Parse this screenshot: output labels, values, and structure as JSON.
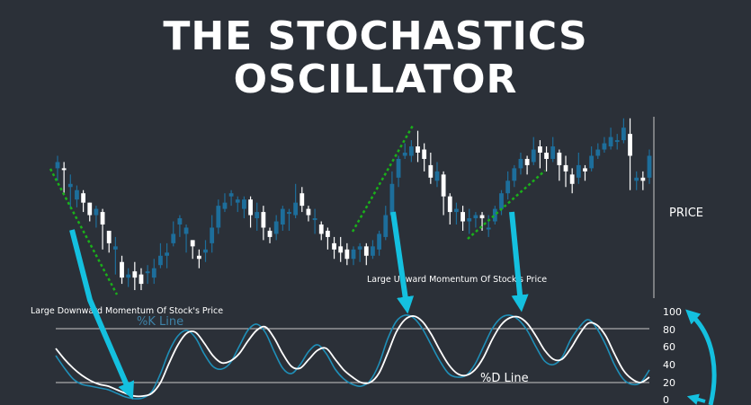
{
  "title_lines": [
    "THE STOCHASTICS",
    "OSCILLATOR"
  ],
  "colors": {
    "background": "#2b3038",
    "candle_white": "#ffffff",
    "candle_blue": "#1d6e9b",
    "k_line": "#1f8fb8",
    "d_line": "#ffffff",
    "arrow": "#14c0df",
    "trend": "#1ab01a",
    "k_label": "#3f83a8",
    "guide": "#c8c8c8"
  },
  "chart_data": [
    {
      "type": "candlestick",
      "ylabel": "PRICE",
      "ylim": [
        0,
        100
      ],
      "candles": [
        [
          82,
          86,
          80,
          90,
          74
        ],
        [
          82,
          81,
          70,
          86,
          66
        ],
        [
          70,
          72,
          60,
          78,
          56
        ],
        [
          62,
          68,
          60,
          71,
          57
        ],
        [
          66,
          60,
          57,
          68,
          54
        ],
        [
          60,
          52,
          52,
          60,
          48
        ],
        [
          52,
          56,
          46,
          58,
          44
        ],
        [
          54,
          46,
          38,
          56,
          30
        ],
        [
          42,
          34,
          30,
          42,
          28
        ],
        [
          30,
          32,
          20,
          38,
          14
        ],
        [
          22,
          12,
          10,
          26,
          8
        ],
        [
          12,
          14,
          8,
          18,
          6
        ],
        [
          16,
          12,
          8,
          22,
          4
        ],
        [
          14,
          8,
          6,
          18,
          4
        ],
        [
          16,
          16,
          8,
          20,
          10
        ],
        [
          12,
          18,
          12,
          24,
          8
        ],
        [
          20,
          26,
          20,
          34,
          18
        ],
        [
          26,
          28,
          22,
          34,
          18
        ],
        [
          34,
          40,
          32,
          48,
          32
        ],
        [
          46,
          50,
          42,
          52,
          38
        ],
        [
          40,
          44,
          36,
          46,
          28
        ],
        [
          36,
          32,
          26,
          36,
          24
        ],
        [
          26,
          24,
          20,
          30,
          18
        ],
        [
          28,
          30,
          24,
          36,
          22
        ],
        [
          34,
          44,
          32,
          52,
          28
        ],
        [
          44,
          58,
          44,
          62,
          40
        ],
        [
          56,
          60,
          56,
          66,
          54
        ],
        [
          64,
          66,
          60,
          68,
          58
        ],
        [
          60,
          62,
          58,
          64,
          54
        ],
        [
          56,
          62,
          54,
          64,
          50
        ],
        [
          62,
          52,
          50,
          64,
          44
        ],
        [
          50,
          54,
          48,
          60,
          42
        ],
        [
          54,
          44,
          40,
          58,
          36
        ],
        [
          42,
          38,
          36,
          44,
          34
        ],
        [
          40,
          48,
          38,
          52,
          36
        ],
        [
          46,
          56,
          46,
          58,
          42
        ],
        [
          54,
          54,
          44,
          56,
          42
        ],
        [
          52,
          60,
          50,
          72,
          50
        ],
        [
          66,
          58,
          56,
          70,
          54
        ],
        [
          56,
          52,
          50,
          58,
          48
        ],
        [
          50,
          50,
          42,
          56,
          40
        ],
        [
          46,
          40,
          38,
          48,
          36
        ],
        [
          42,
          38,
          32,
          44,
          30
        ],
        [
          34,
          30,
          28,
          38,
          24
        ],
        [
          32,
          28,
          26,
          38,
          22
        ],
        [
          30,
          24,
          22,
          34,
          20
        ],
        [
          24,
          30,
          24,
          32,
          20
        ],
        [
          30,
          32,
          28,
          34,
          22
        ],
        [
          32,
          26,
          26,
          34,
          20
        ],
        [
          26,
          32,
          26,
          36,
          24
        ],
        [
          30,
          40,
          30,
          42,
          26
        ],
        [
          38,
          52,
          38,
          58,
          36
        ],
        [
          52,
          72,
          52,
          80,
          48
        ],
        [
          76,
          88,
          76,
          90,
          70
        ],
        [
          90,
          92,
          90,
          98,
          88
        ],
        [
          90,
          96,
          88,
          100,
          86
        ],
        [
          96,
          92,
          92,
          106,
          86
        ],
        [
          94,
          88,
          84,
          98,
          80
        ],
        [
          84,
          76,
          74,
          92,
          72
        ],
        [
          74,
          80,
          74,
          86,
          70
        ],
        [
          78,
          64,
          62,
          80,
          52
        ],
        [
          64,
          54,
          50,
          66,
          46
        ],
        [
          54,
          56,
          50,
          60,
          46
        ],
        [
          54,
          48,
          44,
          58,
          42
        ],
        [
          48,
          50,
          44,
          56,
          40
        ],
        [
          50,
          52,
          46,
          54,
          44
        ],
        [
          52,
          50,
          44,
          54,
          42
        ],
        [
          44,
          44,
          40,
          52,
          38
        ],
        [
          48,
          56,
          48,
          58,
          46
        ],
        [
          56,
          66,
          56,
          68,
          52
        ],
        [
          66,
          74,
          66,
          80,
          62
        ],
        [
          74,
          82,
          74,
          84,
          70
        ],
        [
          82,
          88,
          82,
          92,
          78
        ],
        [
          88,
          84,
          80,
          90,
          78
        ],
        [
          86,
          94,
          86,
          102,
          84
        ],
        [
          96,
          92,
          88,
          100,
          82
        ],
        [
          92,
          88,
          84,
          96,
          80
        ],
        [
          88,
          96,
          88,
          102,
          86
        ],
        [
          92,
          84,
          82,
          94,
          74
        ],
        [
          84,
          80,
          76,
          90,
          70
        ],
        [
          78,
          72,
          68,
          82,
          66
        ],
        [
          76,
          84,
          76,
          92,
          72
        ],
        [
          82,
          80,
          76,
          84,
          74
        ],
        [
          82,
          90,
          82,
          96,
          80
        ],
        [
          90,
          94,
          90,
          98,
          88
        ],
        [
          94,
          98,
          94,
          102,
          92
        ],
        [
          96,
          102,
          96,
          108,
          94
        ],
        [
          100,
          100,
          96,
          104,
          94
        ],
        [
          100,
          108,
          100,
          114,
          98
        ],
        [
          104,
          90,
          70,
          114,
          68
        ],
        [
          74,
          76,
          70,
          80,
          68
        ],
        [
          76,
          74,
          72,
          80,
          68
        ],
        [
          76,
          90,
          76,
          94,
          72
        ]
      ],
      "trend_lines": [
        "down-left",
        "up-middle",
        "up-right"
      ]
    },
    {
      "type": "line",
      "ylim": [
        0,
        100
      ],
      "y_ticks": [
        0,
        20,
        40,
        60,
        80,
        100
      ],
      "guides": [
        20,
        80
      ],
      "series": [
        {
          "name": "%K Line",
          "values": [
            50,
            36,
            24,
            18,
            16,
            14,
            12,
            8,
            4,
            2,
            3,
            10,
            30,
            55,
            72,
            78,
            70,
            52,
            38,
            35,
            42,
            60,
            78,
            85,
            76,
            55,
            36,
            30,
            40,
            55,
            62,
            52,
            35,
            24,
            18,
            16,
            22,
            40,
            68,
            88,
            95,
            92,
            80,
            62,
            44,
            30,
            26,
            28,
            40,
            60,
            80,
            92,
            95,
            90,
            78,
            60,
            44,
            40,
            48,
            68,
            82,
            90,
            80,
            62,
            40,
            24,
            18,
            20,
            34
          ]
        },
        {
          "name": "%D Line",
          "values": [
            58,
            46,
            36,
            28,
            22,
            18,
            16,
            12,
            8,
            5,
            5,
            8,
            20,
            42,
            62,
            75,
            76,
            64,
            50,
            42,
            44,
            52,
            66,
            78,
            82,
            70,
            52,
            38,
            36,
            46,
            56,
            58,
            46,
            34,
            26,
            20,
            20,
            30,
            52,
            76,
            90,
            94,
            88,
            74,
            56,
            40,
            30,
            28,
            34,
            48,
            68,
            84,
            92,
            93,
            86,
            72,
            56,
            46,
            46,
            58,
            74,
            86,
            84,
            72,
            52,
            34,
            24,
            20,
            26
          ]
        }
      ]
    }
  ],
  "labels": {
    "price_axis": "PRICE",
    "k_line_label": "%K Line",
    "d_line_label": "%D Line",
    "downward_note": "Large Downward Momentum Of  Stock's Price",
    "upward_note": "Large Upward Momentum Of  Stock's Price"
  }
}
